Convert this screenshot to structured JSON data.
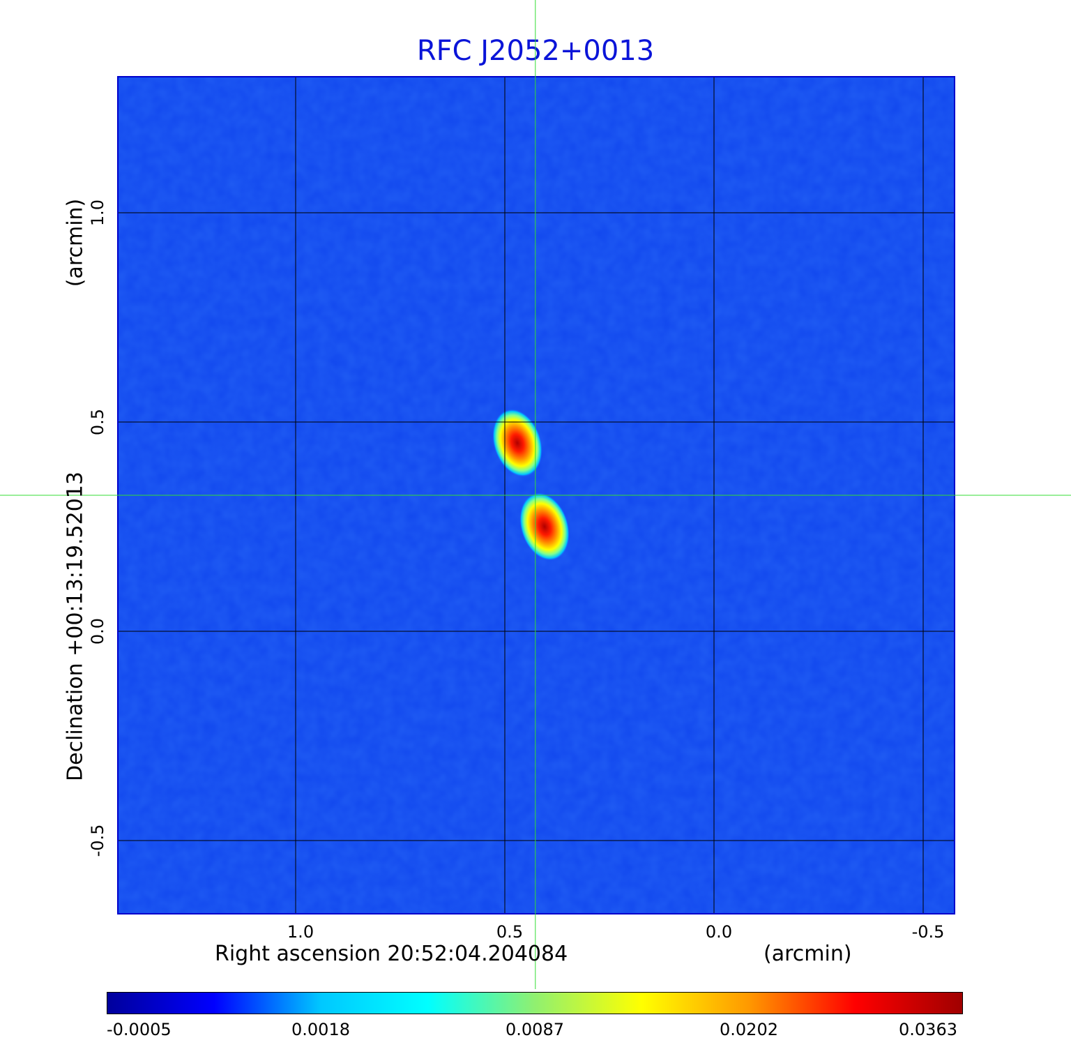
{
  "chart_data": {
    "type": "heatmap",
    "title": "RFC J2052+0013",
    "xlabel": "Right ascension  20:52:04.204084",
    "x_unit_label": "(arcmin)",
    "ylabel": "Declination  +00:13:19.52013",
    "y_unit_label": "(arcmin)",
    "xlim": [
      1.425,
      -0.575
    ],
    "ylim": [
      -0.675,
      1.325
    ],
    "x_ticks": [
      1.0,
      0.5,
      0.0,
      -0.5
    ],
    "x_tick_labels": [
      "1.0",
      "0.5",
      "0.0",
      "-0.5"
    ],
    "y_ticks": [
      1.0,
      0.5,
      0.0,
      -0.5
    ],
    "y_tick_labels": [
      "1.0",
      "0.5",
      "0.0",
      "-0.5"
    ],
    "grid": true,
    "crosshair": {
      "x": 0.427,
      "y": 0.325,
      "color": "#33dd33"
    },
    "components": [
      {
        "x": 0.47,
        "y": 0.45,
        "peak": 0.0363
      },
      {
        "x": 0.405,
        "y": 0.25,
        "peak": 0.0363
      }
    ],
    "colorbar": {
      "tick_labels": [
        "-0.0005",
        "0.0018",
        "0.0087",
        "0.0202",
        "0.0363"
      ],
      "colors": [
        "#00009c",
        "#0000ff",
        "#00c8ff",
        "#00ffff",
        "#90f070",
        "#ffff00",
        "#ff9900",
        "#ff0000",
        "#a00000"
      ]
    }
  }
}
